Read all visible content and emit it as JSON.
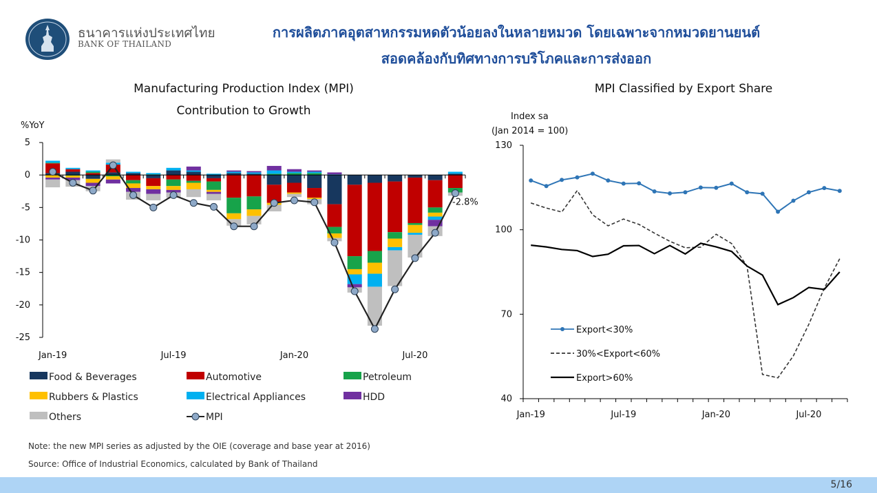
{
  "header": {
    "org_th": "ธนาคารแห่งประเทศไทย",
    "org_en": "BANK OF THAILAND",
    "title_line1": "การผลิตภาคอุตสาหกรรมหดตัวน้อยลงในหลายหมวด โดยเฉพาะจากหมวดยานยนต์",
    "title_line2": "สอดคล้องกับทิศทางการบริโภคและการส่งออก",
    "title_color": "#1f4e9a"
  },
  "footer": {
    "note": "Note: the new MPI series as adjusted by the OIE (coverage and base year at 2016)",
    "source": "Source: Office of Industrial Economics, calculated by Bank of Thailand",
    "page": "5/16",
    "bar_color": "#aed4f5"
  },
  "chart_data": [
    {
      "type": "bar",
      "stacked": true,
      "title": "Manufacturing Production Index (MPI)",
      "subtitle": "Contribution to Growth",
      "ylabel": "%YoY",
      "ylim": [
        -25,
        5
      ],
      "yticks": [
        5,
        0,
        -5,
        -10,
        -15,
        -20,
        -25
      ],
      "x_ticks": [
        {
          "index": 0,
          "label": "Jan-19"
        },
        {
          "index": 6,
          "label": "Jul-19"
        },
        {
          "index": 12,
          "label": "Jan-20"
        },
        {
          "index": 18,
          "label": "Jul-20"
        }
      ],
      "categories": [
        "Jan-19",
        "Feb-19",
        "Mar-19",
        "Apr-19",
        "May-19",
        "Jun-19",
        "Jul-19",
        "Aug-19",
        "Sep-19",
        "Oct-19",
        "Nov-19",
        "Dec-19",
        "Jan-20",
        "Feb-20",
        "Mar-20",
        "Apr-20",
        "May-20",
        "Jun-20",
        "Jul-20",
        "Aug-20",
        "Sep-20"
      ],
      "series": [
        {
          "name": "Food & Beverages",
          "color": "#17375e",
          "values": [
            0.3,
            0.5,
            -0.6,
            0.4,
            0.3,
            -0.5,
            0.7,
            0.5,
            -0.5,
            0.3,
            0.2,
            -1.5,
            -1.2,
            -2.0,
            -4.5,
            -1.5,
            -1.2,
            -1.0,
            -0.4,
            -0.8,
            0.2
          ]
        },
        {
          "name": "Automotive",
          "color": "#c00000",
          "values": [
            1.5,
            0.4,
            0.3,
            1.2,
            -0.8,
            -1.2,
            -0.7,
            -0.9,
            -0.5,
            -3.5,
            -3.3,
            -2.8,
            -1.5,
            -1.5,
            -3.5,
            -11.0,
            -10.5,
            -7.8,
            -7.0,
            -4.2,
            -2.0
          ]
        },
        {
          "name": "Petroleum",
          "color": "#17a34a",
          "values": [
            0.1,
            -0.1,
            0.2,
            -0.2,
            -0.5,
            0.1,
            -1.0,
            -0.3,
            -1.3,
            -2.4,
            -2.0,
            0.2,
            0.3,
            0.3,
            -1.0,
            -2.0,
            -1.8,
            -1.0,
            -0.3,
            -0.8,
            -0.7
          ]
        },
        {
          "name": "Rubbers & Plastics",
          "color": "#ffc000",
          "values": [
            -0.4,
            -0.3,
            -0.6,
            -0.5,
            -0.7,
            -0.5,
            -0.6,
            -1.0,
            -0.3,
            -0.9,
            -1.0,
            -0.3,
            -0.2,
            -0.2,
            -0.7,
            -0.8,
            -1.7,
            -1.3,
            -1.2,
            -0.6,
            0.0
          ]
        },
        {
          "name": "Electrical Appliances",
          "color": "#00b0f0",
          "values": [
            0.3,
            0.2,
            0.2,
            0.3,
            0.2,
            0.2,
            0.4,
            0.2,
            0.2,
            0.2,
            0.2,
            0.5,
            0.2,
            0.2,
            0.1,
            -1.5,
            -2.0,
            -0.5,
            -0.3,
            -0.5,
            0.3
          ]
        },
        {
          "name": "HDD",
          "color": "#7030a0",
          "values": [
            -0.3,
            -0.4,
            -0.5,
            -0.6,
            -0.6,
            -0.7,
            -0.4,
            0.6,
            -0.3,
            0.2,
            0.2,
            0.7,
            0.4,
            0.2,
            0.3,
            -0.5,
            0.0,
            0.0,
            0.0,
            -1.0,
            0.0
          ]
        },
        {
          "name": "Others",
          "color": "#bfbfbf",
          "values": [
            -1.2,
            -1.0,
            -0.8,
            0.5,
            -1.2,
            -1.0,
            -0.8,
            -1.2,
            -1.0,
            -1.0,
            -1.3,
            -1.0,
            -0.5,
            -0.8,
            -0.5,
            -0.8,
            -6.0,
            -5.5,
            -3.5,
            -1.5,
            -0.5
          ]
        }
      ],
      "line": {
        "name": "MPI",
        "color": "#222222",
        "marker_color": "#8ea9c8",
        "values": [
          0.5,
          -1.2,
          -2.4,
          1.5,
          -3.1,
          -5.0,
          -3.1,
          -4.3,
          -4.9,
          -7.9,
          -7.9,
          -4.3,
          -3.9,
          -4.2,
          -10.4,
          -17.9,
          -23.7,
          -17.6,
          -12.8,
          -8.9,
          -2.8
        ]
      },
      "annotation": "-2.8%",
      "legend_position": "bottom"
    },
    {
      "type": "line",
      "title": "MPI Classified by Export Share",
      "ylabel_line1": "Index sa",
      "ylabel_line2": "(Jan 2014 = 100)",
      "ylim": [
        40,
        130
      ],
      "yticks": [
        130,
        100,
        70,
        40
      ],
      "x_ticks": [
        {
          "index": 0,
          "label": "Jan-19"
        },
        {
          "index": 6,
          "label": "Jul-19"
        },
        {
          "index": 12,
          "label": "Jan-20"
        },
        {
          "index": 18,
          "label": "Jul-20"
        }
      ],
      "categories": [
        "Jan-19",
        "Feb-19",
        "Mar-19",
        "Apr-19",
        "May-19",
        "Jun-19",
        "Jul-19",
        "Aug-19",
        "Sep-19",
        "Oct-19",
        "Nov-19",
        "Dec-19",
        "Jan-20",
        "Feb-20",
        "Mar-20",
        "Apr-20",
        "May-20",
        "Jun-20",
        "Jul-20",
        "Aug-20",
        "Sep-20"
      ],
      "series": [
        {
          "name": "Export<30%",
          "color": "#2e75b6",
          "style": "solid-marker",
          "values": [
            117.5,
            115.5,
            117.7,
            118.6,
            119.9,
            117.5,
            116.4,
            116.5,
            113.6,
            112.9,
            113.3,
            115.0,
            114.9,
            116.4,
            113.3,
            112.8,
            106.4,
            110.3,
            113.3,
            114.8,
            113.8
          ]
        },
        {
          "name": "30%<Export<60%",
          "color": "#333333",
          "style": "dashed",
          "values": [
            109.5,
            107.7,
            106.3,
            113.9,
            105.3,
            101.4,
            103.8,
            101.9,
            98.8,
            95.9,
            93.6,
            93.8,
            98.4,
            95.1,
            87.1,
            48.6,
            47.4,
            55.2,
            66.4,
            79.2,
            89.7
          ]
        },
        {
          "name": "Export>60%",
          "color": "#000000",
          "style": "solid",
          "values": [
            94.5,
            93.9,
            93.0,
            92.6,
            90.5,
            91.3,
            94.3,
            94.4,
            91.5,
            94.4,
            91.4,
            95.2,
            93.9,
            92.3,
            87.1,
            83.9,
            73.4,
            75.9,
            79.5,
            78.8,
            85.0
          ]
        }
      ],
      "legend_position": "bottom-left"
    }
  ]
}
